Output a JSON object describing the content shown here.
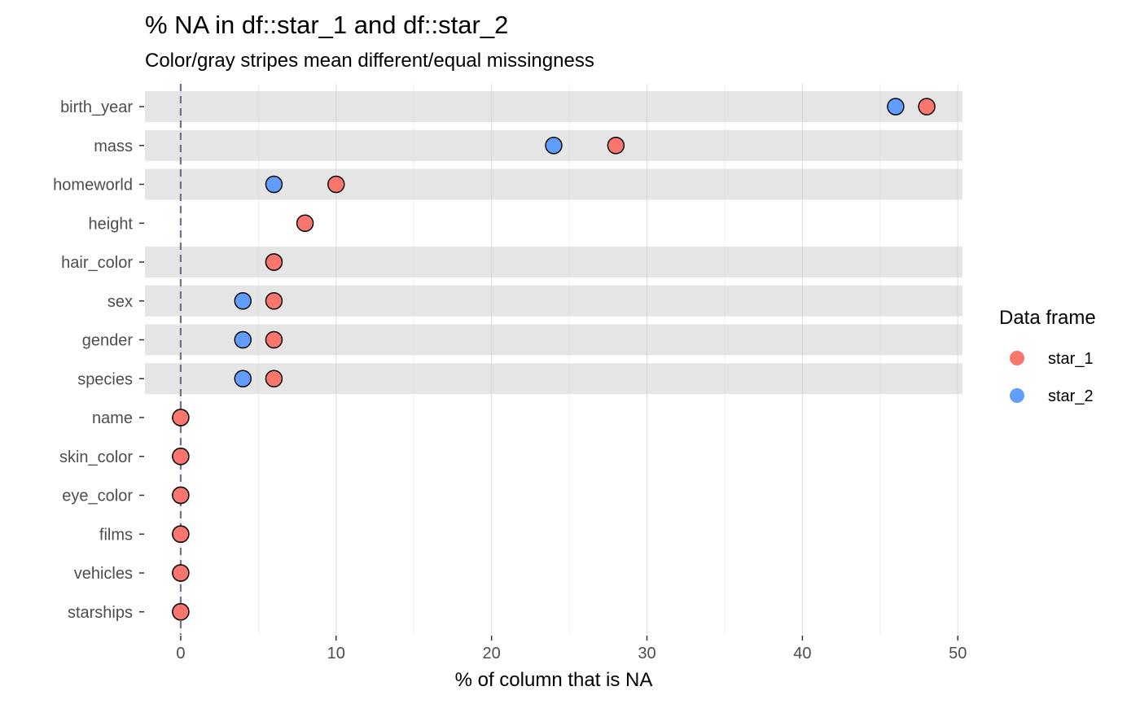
{
  "chart_data": {
    "type": "scatter",
    "title": "% NA in df::star_1 and df::star_2",
    "subtitle": "Color/gray stripes mean different/equal missingness",
    "xlabel": "% of column that is NA",
    "ylabel": "",
    "xlim": [
      -2.3,
      50.3
    ],
    "xticks": [
      0,
      10,
      20,
      30,
      40,
      50
    ],
    "x_minor_gridlines": [
      5,
      15,
      25,
      35,
      45
    ],
    "reference_line_x": 0,
    "grid": true,
    "legend": {
      "title": "Data frame",
      "placement": "right",
      "items": [
        {
          "name": "star_1",
          "color": "#F8766D"
        },
        {
          "name": "star_2",
          "color": "#619CFF"
        }
      ]
    },
    "stripe_color": "#E5E5E5",
    "reference_line_color": "#6B7689",
    "categories": [
      "birth_year",
      "mass",
      "homeworld",
      "height",
      "hair_color",
      "sex",
      "gender",
      "species",
      "name",
      "skin_color",
      "eye_color",
      "films",
      "vehicles",
      "starships"
    ],
    "differs": [
      true,
      true,
      true,
      false,
      true,
      true,
      true,
      true,
      false,
      false,
      false,
      false,
      false,
      false
    ],
    "series": [
      {
        "name": "star_1",
        "color": "#F8766D",
        "values": [
          48,
          28,
          10,
          8,
          6,
          6,
          6,
          6,
          0,
          0,
          0,
          0,
          0,
          0
        ]
      },
      {
        "name": "star_2",
        "color": "#619CFF",
        "values": [
          46,
          24,
          6,
          null,
          6,
          4,
          4,
          4,
          0,
          0,
          0,
          0,
          0,
          0
        ]
      }
    ]
  }
}
